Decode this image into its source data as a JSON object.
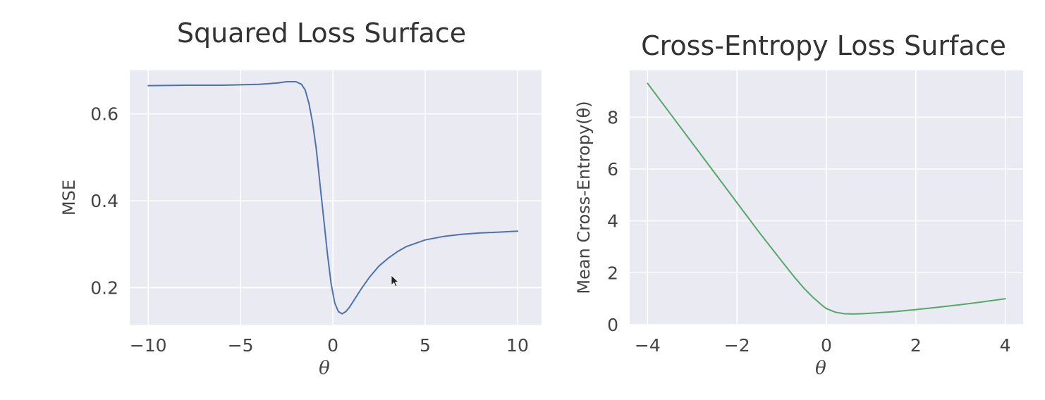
{
  "chart_data": [
    {
      "type": "line",
      "title": "Squared Loss Surface",
      "xlabel": "θ",
      "ylabel": "MSE",
      "xlim": [
        -11,
        11.3
      ],
      "ylim": [
        0.115,
        0.7
      ],
      "xticks": [
        -10,
        -5,
        0,
        5,
        10
      ],
      "xtick_labels": [
        "−10",
        "−5",
        "0",
        "5",
        "10"
      ],
      "yticks": [
        0.2,
        0.4,
        0.6
      ],
      "ytick_labels": [
        "0.2",
        "0.4",
        "0.6"
      ],
      "grid": true,
      "series": [
        {
          "color": "#4c72b0",
          "x": [
            -10,
            -8,
            -6,
            -4,
            -3,
            -2.5,
            -2,
            -1.7,
            -1.5,
            -1.3,
            -1.1,
            -0.9,
            -0.7,
            -0.5,
            -0.3,
            -0.1,
            0.1,
            0.3,
            0.5,
            0.7,
            0.9,
            1.2,
            1.5,
            2,
            2.5,
            3,
            3.5,
            4,
            5,
            6,
            7,
            8,
            9,
            10
          ],
          "y": [
            0.665,
            0.666,
            0.666,
            0.668,
            0.671,
            0.674,
            0.674,
            0.668,
            0.655,
            0.625,
            0.58,
            0.52,
            0.44,
            0.36,
            0.28,
            0.21,
            0.165,
            0.145,
            0.14,
            0.145,
            0.155,
            0.175,
            0.195,
            0.225,
            0.25,
            0.268,
            0.283,
            0.295,
            0.31,
            0.318,
            0.323,
            0.326,
            0.328,
            0.33
          ]
        }
      ]
    },
    {
      "type": "line",
      "title": "Cross-Entropy Loss Surface",
      "xlabel": "θ",
      "ylabel": "Mean Cross-Entropy(θ)",
      "xlim": [
        -4.4,
        4.4
      ],
      "ylim": [
        0,
        9.8
      ],
      "xticks": [
        -4,
        -2,
        0,
        2,
        4
      ],
      "xtick_labels": [
        "−4",
        "−2",
        "0",
        "2",
        "4"
      ],
      "yticks": [
        0,
        2,
        4,
        6,
        8
      ],
      "ytick_labels": [
        "0",
        "2",
        "4",
        "6",
        "8"
      ],
      "grid": true,
      "series": [
        {
          "color": "#55a868",
          "x": [
            -4,
            -3.5,
            -3,
            -2.5,
            -2,
            -1.5,
            -1,
            -0.7,
            -0.5,
            -0.3,
            -0.1,
            0,
            0.2,
            0.4,
            0.6,
            0.8,
            1,
            1.5,
            2,
            2.5,
            3,
            3.5,
            4
          ],
          "y": [
            9.3,
            8.15,
            7,
            5.85,
            4.7,
            3.55,
            2.45,
            1.8,
            1.4,
            1.05,
            0.75,
            0.62,
            0.48,
            0.42,
            0.41,
            0.42,
            0.44,
            0.5,
            0.58,
            0.67,
            0.77,
            0.88,
            1.0
          ]
        }
      ]
    }
  ]
}
